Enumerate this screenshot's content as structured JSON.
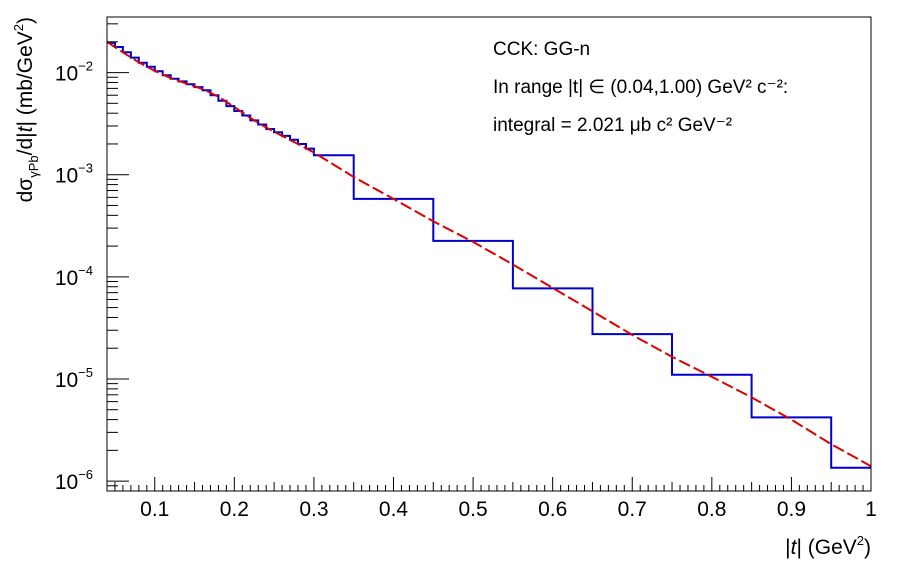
{
  "chart_data": {
    "type": "line",
    "x_scale": "linear",
    "y_scale": "log",
    "xlim": [
      0.04,
      1.0
    ],
    "ylim": [
      8e-07,
      0.035
    ],
    "x_ticks": [
      0.1,
      0.2,
      0.3,
      0.4,
      0.5,
      0.6,
      0.7,
      0.8,
      0.9,
      1.0
    ],
    "x_tick_labels": [
      "0.1",
      "0.2",
      "0.3",
      "0.4",
      "0.5",
      "0.6",
      "0.7",
      "0.8",
      "0.9",
      "1"
    ],
    "y_ticks": [
      1e-06,
      1e-05,
      0.0001,
      0.001,
      0.01
    ],
    "y_tick_labels": [
      {
        "base": "10",
        "exp": "−6"
      },
      {
        "base": "10",
        "exp": "−5"
      },
      {
        "base": "10",
        "exp": "−4"
      },
      {
        "base": "10",
        "exp": "−3"
      },
      {
        "base": "10",
        "exp": "−2"
      }
    ],
    "xlabel": {
      "pre": "|",
      "italic": "t",
      "mid": "| (GeV",
      "sup": "2",
      "post": ")"
    },
    "ylabel": {
      "d": "dσ",
      "sub": "γPb",
      "mid1": "/d|",
      "italic": "t",
      "mid2": "| (mb/GeV",
      "sup": "2",
      "post": ")"
    },
    "annotations": [
      {
        "text": "CCK: GG-n"
      },
      {
        "text": "In range |t| ∈ (0.04,1.00) GeV² c⁻²:"
      },
      {
        "text": "integral = 2.021 μb c² GeV⁻²"
      }
    ],
    "grid": false,
    "series": [
      {
        "style": "histogram-step",
        "color": "#0000cc",
        "bins": [
          {
            "x0": 0.04,
            "x1": 0.05,
            "y": 0.0195
          },
          {
            "x0": 0.05,
            "x1": 0.06,
            "y": 0.0178
          },
          {
            "x0": 0.06,
            "x1": 0.07,
            "y": 0.0158
          },
          {
            "x0": 0.07,
            "x1": 0.08,
            "y": 0.014
          },
          {
            "x0": 0.08,
            "x1": 0.09,
            "y": 0.0125
          },
          {
            "x0": 0.09,
            "x1": 0.1,
            "y": 0.0114
          },
          {
            "x0": 0.1,
            "x1": 0.11,
            "y": 0.0103
          },
          {
            "x0": 0.11,
            "x1": 0.12,
            "y": 0.0094
          },
          {
            "x0": 0.12,
            "x1": 0.13,
            "y": 0.0087
          },
          {
            "x0": 0.13,
            "x1": 0.14,
            "y": 0.0082
          },
          {
            "x0": 0.14,
            "x1": 0.15,
            "y": 0.0077
          },
          {
            "x0": 0.15,
            "x1": 0.16,
            "y": 0.0072
          },
          {
            "x0": 0.16,
            "x1": 0.17,
            "y": 0.0067
          },
          {
            "x0": 0.17,
            "x1": 0.18,
            "y": 0.006
          },
          {
            "x0": 0.18,
            "x1": 0.19,
            "y": 0.0053
          },
          {
            "x0": 0.19,
            "x1": 0.2,
            "y": 0.0047
          },
          {
            "x0": 0.2,
            "x1": 0.21,
            "y": 0.0042
          },
          {
            "x0": 0.21,
            "x1": 0.22,
            "y": 0.0038
          },
          {
            "x0": 0.22,
            "x1": 0.23,
            "y": 0.0034
          },
          {
            "x0": 0.23,
            "x1": 0.24,
            "y": 0.0031
          },
          {
            "x0": 0.24,
            "x1": 0.25,
            "y": 0.0028
          },
          {
            "x0": 0.25,
            "x1": 0.26,
            "y": 0.0026
          },
          {
            "x0": 0.26,
            "x1": 0.27,
            "y": 0.0024
          },
          {
            "x0": 0.27,
            "x1": 0.28,
            "y": 0.0022
          },
          {
            "x0": 0.28,
            "x1": 0.29,
            "y": 0.002
          },
          {
            "x0": 0.29,
            "x1": 0.3,
            "y": 0.0018
          },
          {
            "x0": 0.3,
            "x1": 0.35,
            "y": 0.00155
          },
          {
            "x0": 0.35,
            "x1": 0.45,
            "y": 0.00058
          },
          {
            "x0": 0.45,
            "x1": 0.55,
            "y": 0.000225
          },
          {
            "x0": 0.55,
            "x1": 0.65,
            "y": 7.7e-05
          },
          {
            "x0": 0.65,
            "x1": 0.75,
            "y": 2.75e-05
          },
          {
            "x0": 0.75,
            "x1": 0.85,
            "y": 1.1e-05
          },
          {
            "x0": 0.85,
            "x1": 0.95,
            "y": 4.2e-06
          },
          {
            "x0": 0.95,
            "x1": 1.0,
            "y": 1.35e-06
          }
        ]
      },
      {
        "style": "dashed-line",
        "color": "#dd0000",
        "x": [
          0.04,
          0.06,
          0.08,
          0.1,
          0.12,
          0.14,
          0.16,
          0.18,
          0.2,
          0.22,
          0.24,
          0.26,
          0.28,
          0.3,
          0.35,
          0.4,
          0.45,
          0.5,
          0.55,
          0.6,
          0.65,
          0.7,
          0.75,
          0.8,
          0.85,
          0.9,
          0.95,
          1.0
        ],
        "y": [
          0.02,
          0.0158,
          0.0126,
          0.0104,
          0.0088,
          0.0078,
          0.0069,
          0.0058,
          0.0046,
          0.0036,
          0.0029,
          0.0024,
          0.002,
          0.00165,
          0.00095,
          0.00058,
          0.00035,
          0.00022,
          0.000132,
          7.8e-05,
          4.6e-05,
          2.7e-05,
          1.65e-05,
          1.05e-05,
          6.6e-06,
          4e-06,
          2.3e-06,
          1.4e-06
        ]
      }
    ]
  }
}
